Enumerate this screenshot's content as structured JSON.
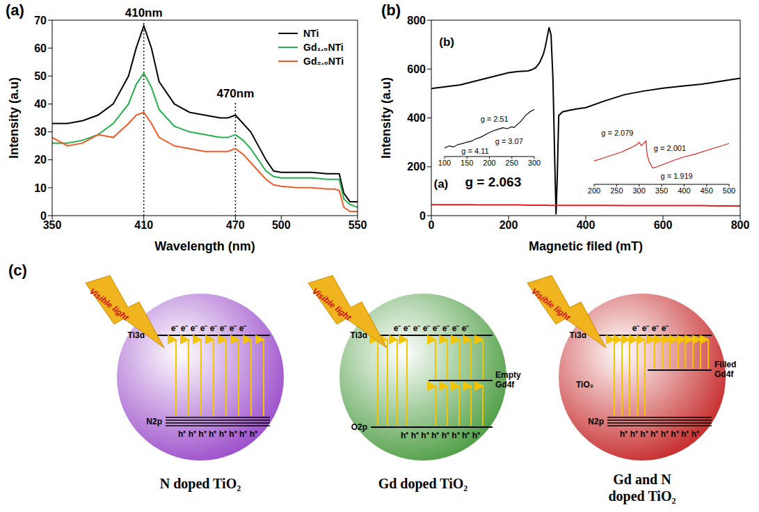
{
  "chart_data": [
    {
      "panel": "(a)",
      "type": "line",
      "x_label": "Wavelength (nm)",
      "y_label": "Intensity (a.u)",
      "x": [
        350,
        360,
        370,
        380,
        390,
        400,
        405,
        410,
        415,
        420,
        430,
        440,
        450,
        460,
        465,
        470,
        475,
        480,
        485,
        490,
        495,
        500,
        510,
        520,
        530,
        535,
        538,
        541,
        545,
        550
      ],
      "xlim": [
        350,
        550
      ],
      "xticks": [
        350,
        410,
        470,
        500,
        550
      ],
      "ylim": [
        0,
        70
      ],
      "yticks": [
        0,
        10,
        20,
        30,
        40,
        50,
        60,
        70
      ],
      "legend": "upper right",
      "series": [
        {
          "name": "NTi",
          "color": "#000000",
          "values": [
            33,
            33,
            34,
            36,
            40,
            50,
            60,
            68,
            60,
            48,
            40,
            37,
            36,
            35,
            35,
            36,
            33,
            30,
            25,
            20,
            16,
            15.5,
            15.5,
            15.5,
            15,
            15,
            15,
            8,
            5,
            5
          ]
        },
        {
          "name": "Gd₁.₀NTi",
          "color": "#22b14c",
          "values": [
            26,
            26,
            27,
            29,
            33,
            40,
            47,
            51,
            46,
            38,
            32,
            30,
            29,
            28,
            28,
            29,
            27,
            24,
            20,
            16,
            14,
            13.5,
            13.5,
            13.5,
            13,
            13,
            13,
            6,
            4,
            3
          ]
        },
        {
          "name": "Gd₂.₀NTi",
          "color": "#f05a28",
          "values": [
            28,
            25,
            26,
            29,
            28,
            33,
            36,
            37,
            33,
            28,
            25,
            24,
            23,
            23,
            23,
            24,
            22,
            19,
            16,
            13,
            11,
            10.5,
            10,
            10,
            9.5,
            9.5,
            9,
            3,
            1.5,
            1.5
          ]
        }
      ],
      "peaks": [
        {
          "text": "410nm",
          "x": 410,
          "y": 70
        },
        {
          "text": "470nm",
          "x": 470,
          "y": 41
        }
      ]
    },
    {
      "panel": "(b)",
      "type": "line",
      "x_label": "Magnetic filed (mT)",
      "y_label": "Intensity (a.u)",
      "x": [
        0,
        25,
        50,
        75,
        100,
        125,
        150,
        175,
        200,
        225,
        250,
        260,
        270,
        280,
        290,
        295,
        300,
        305,
        310,
        315,
        320,
        323,
        326,
        330,
        340,
        360,
        380,
        400,
        450,
        500,
        550,
        600,
        650,
        700,
        750,
        800
      ],
      "xlim": [
        0,
        800
      ],
      "xticks": [
        0,
        200,
        400,
        600,
        800
      ],
      "ylim": [
        0,
        800
      ],
      "yticks": [
        0,
        200,
        400,
        600,
        800
      ],
      "series": [
        {
          "name": "(b)",
          "color": "#000000",
          "label_x": 40,
          "label_y": 680,
          "values": [
            520,
            525,
            530,
            535,
            545,
            555,
            565,
            575,
            585,
            590,
            592,
            597,
            605,
            625,
            660,
            690,
            730,
            770,
            740,
            560,
            200,
            5,
            150,
            410,
            425,
            432,
            438,
            442,
            470,
            495,
            510,
            522,
            530,
            538,
            550,
            562
          ]
        },
        {
          "name": "(a)",
          "color": "#e02020",
          "label_x": 25,
          "label_y": 100,
          "values": [
            45,
            45,
            45,
            45,
            45,
            44,
            44,
            44,
            44,
            44,
            43,
            43,
            43,
            43,
            43,
            43,
            43,
            42,
            42,
            42,
            42,
            42,
            42,
            42,
            42,
            42,
            42,
            42,
            42,
            41,
            41,
            41,
            41,
            41,
            40,
            40
          ]
        }
      ],
      "annotations": [
        {
          "text": "g = 2.063",
          "x": 160,
          "y": 140
        }
      ],
      "insets": [
        {
          "type": "line",
          "tick_labels": "x",
          "x": [
            100,
            110,
            120,
            130,
            140,
            150,
            160,
            170,
            180,
            190,
            200,
            210,
            220,
            230,
            240,
            250,
            255,
            260,
            270,
            280,
            290,
            300
          ],
          "xlim": [
            100,
            300
          ],
          "xticks": [
            100,
            150,
            200,
            250,
            300
          ],
          "ylim": [
            0,
            100
          ],
          "series": [
            {
              "color": "#000000",
              "values": [
                18,
                22,
                20,
                25,
                27,
                30,
                32,
                37,
                40,
                45,
                50,
                54,
                57,
                60,
                58,
                62,
                60,
                65,
                73,
                85,
                93,
                98
              ]
            }
          ],
          "annotations": [
            {
              "text": "g = 4.11",
              "x": 130,
              "y": 12
            },
            {
              "text": "g = 3.07",
              "x": 205,
              "y": 32
            },
            {
              "text": "g = 2.51",
              "x": 250,
              "y": 78
            }
          ]
        },
        {
          "type": "line",
          "tick_labels": "x",
          "x": [
            200,
            220,
            240,
            260,
            280,
            295,
            300,
            305,
            310,
            315,
            318,
            322,
            330,
            340,
            350,
            360,
            380,
            400,
            425,
            450,
            475,
            500
          ],
          "xlim": [
            200,
            500
          ],
          "xticks": [
            200,
            250,
            300,
            350,
            400,
            450,
            500
          ],
          "ylim": [
            0,
            100
          ],
          "series": [
            {
              "color": "#e02020",
              "values": [
                40,
                45,
                50,
                55,
                62,
                68,
                72,
                66,
                70,
                74,
                50,
                40,
                28,
                30,
                33,
                36,
                42,
                47,
                52,
                58,
                64,
                70
              ]
            }
          ],
          "annotations": [
            {
              "text": "g = 2.079",
              "x": 295,
              "y": 88
            },
            {
              "text": "g = 2.001",
              "x": 325,
              "y": 62
            },
            {
              "text": "g = 1.919",
              "x": 340,
              "y": 14
            }
          ]
        }
      ]
    }
  ],
  "diagram": {
    "panel": "(c)",
    "light": "Visible light",
    "spheres": [
      {
        "caption": "N doped TiO₂",
        "color": "#9b4dca",
        "cb": "Ti3d",
        "vb": "N2p",
        "electrons": "e⁻ e⁻ e⁻ e⁻ e⁻ e⁻ e⁻ e⁻",
        "holes": "h⁺ h⁺ h⁺ h⁺ h⁺ h⁺ h⁺ h⁺"
      },
      {
        "caption": "Gd doped TiO₂",
        "color": "#4f9e45",
        "cb": "Ti3d",
        "vb": "O2p",
        "mid": "Empty Gd4f",
        "electrons": "e⁻ e⁻ e⁻ e⁻ e⁻ e⁻ e⁻ e⁻",
        "holes": "h⁺ h⁺ h⁺ h⁺ h⁺ h⁺ h⁺ h⁺"
      },
      {
        "caption": "Gd and N doped TiO₂",
        "color": "#c62a2a",
        "cb": "Ti3d",
        "vb": "N2p",
        "mid": "Filled Gd4f",
        "host": "TiO₂",
        "electrons": "e⁻ e⁻ e⁻ e⁻",
        "holes": "h⁺ h⁺ h⁺ h⁺ h⁺ h⁺ h⁺ h⁺"
      }
    ]
  }
}
